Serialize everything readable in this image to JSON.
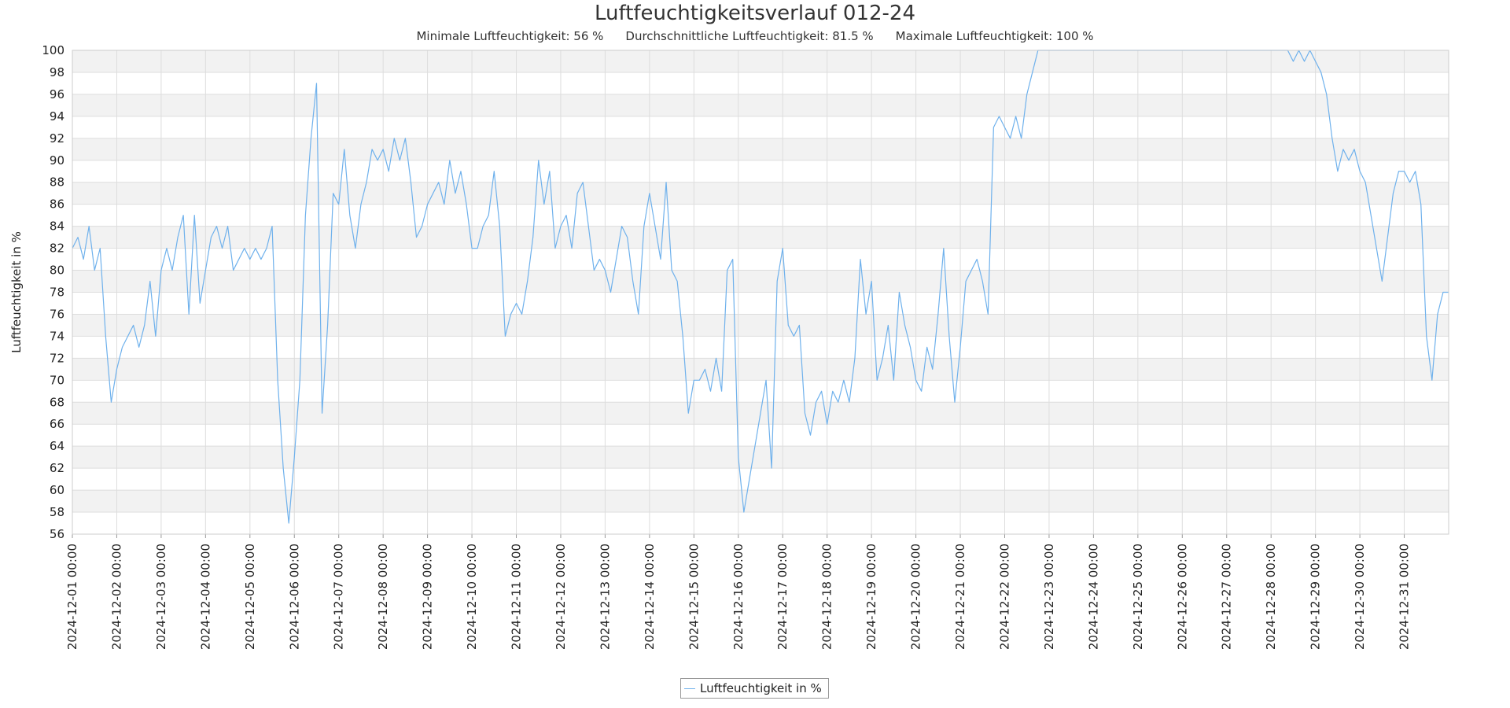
{
  "chart_data": {
    "type": "line",
    "title": "Luftfeuchtigkeitsverlauf 012-24",
    "subtitle": {
      "min": "Minimale Luftfeuchtigkeit: 56 %",
      "avg": "Durchschnittliche Luftfeuchtigkeit: 81.5 %",
      "max": "Maximale Luftfeuchtigkeit: 100 %"
    },
    "ylabel": "Luftfeuchtigkeit in %",
    "xlabel": "",
    "ylim": [
      56,
      100
    ],
    "y_ticks": [
      56,
      58,
      60,
      62,
      64,
      66,
      68,
      70,
      72,
      74,
      76,
      78,
      80,
      82,
      84,
      86,
      88,
      90,
      92,
      94,
      96,
      98,
      100
    ],
    "x_ticks": [
      "2024-12-01 00:00",
      "2024-12-02 00:00",
      "2024-12-03 00:00",
      "2024-12-04 00:00",
      "2024-12-05 00:00",
      "2024-12-06 00:00",
      "2024-12-07 00:00",
      "2024-12-08 00:00",
      "2024-12-09 00:00",
      "2024-12-10 00:00",
      "2024-12-11 00:00",
      "2024-12-12 00:00",
      "2024-12-13 00:00",
      "2024-12-14 00:00",
      "2024-12-15 00:00",
      "2024-12-16 00:00",
      "2024-12-17 00:00",
      "2024-12-18 00:00",
      "2024-12-19 00:00",
      "2024-12-20 00:00",
      "2024-12-21 00:00",
      "2024-12-22 00:00",
      "2024-12-23 00:00",
      "2024-12-24 00:00",
      "2024-12-25 00:00",
      "2024-12-26 00:00",
      "2024-12-27 00:00",
      "2024-12-28 00:00",
      "2024-12-29 00:00",
      "2024-12-30 00:00",
      "2024-12-31 00:00"
    ],
    "xlim": [
      "2024-12-01 00:00",
      "2025-01-01 00:00"
    ],
    "grid": true,
    "legend_position": "bottom-center",
    "series": [
      {
        "name": "Luftfeuchtigkeit in %",
        "color": "#6fb1ec",
        "points": [
          [
            "2024-12-01 00:00",
            82
          ],
          [
            "2024-12-01 03:00",
            83
          ],
          [
            "2024-12-01 06:00",
            81
          ],
          [
            "2024-12-01 09:00",
            84
          ],
          [
            "2024-12-01 12:00",
            80
          ],
          [
            "2024-12-01 15:00",
            82
          ],
          [
            "2024-12-01 18:00",
            74
          ],
          [
            "2024-12-01 21:00",
            68
          ],
          [
            "2024-12-02 00:00",
            71
          ],
          [
            "2024-12-02 03:00",
            73
          ],
          [
            "2024-12-02 06:00",
            74
          ],
          [
            "2024-12-02 09:00",
            75
          ],
          [
            "2024-12-02 12:00",
            73
          ],
          [
            "2024-12-02 15:00",
            75
          ],
          [
            "2024-12-02 18:00",
            79
          ],
          [
            "2024-12-02 21:00",
            74
          ],
          [
            "2024-12-03 00:00",
            80
          ],
          [
            "2024-12-03 03:00",
            82
          ],
          [
            "2024-12-03 06:00",
            80
          ],
          [
            "2024-12-03 09:00",
            83
          ],
          [
            "2024-12-03 12:00",
            85
          ],
          [
            "2024-12-03 15:00",
            76
          ],
          [
            "2024-12-03 18:00",
            85
          ],
          [
            "2024-12-03 21:00",
            77
          ],
          [
            "2024-12-04 00:00",
            80
          ],
          [
            "2024-12-04 03:00",
            83
          ],
          [
            "2024-12-04 06:00",
            84
          ],
          [
            "2024-12-04 09:00",
            82
          ],
          [
            "2024-12-04 12:00",
            84
          ],
          [
            "2024-12-04 15:00",
            80
          ],
          [
            "2024-12-04 18:00",
            81
          ],
          [
            "2024-12-04 21:00",
            82
          ],
          [
            "2024-12-05 00:00",
            81
          ],
          [
            "2024-12-05 03:00",
            82
          ],
          [
            "2024-12-05 06:00",
            81
          ],
          [
            "2024-12-05 09:00",
            82
          ],
          [
            "2024-12-05 12:00",
            84
          ],
          [
            "2024-12-05 15:00",
            70
          ],
          [
            "2024-12-05 18:00",
            62
          ],
          [
            "2024-12-05 21:00",
            57
          ],
          [
            "2024-12-06 00:00",
            63
          ],
          [
            "2024-12-06 03:00",
            70
          ],
          [
            "2024-12-06 06:00",
            85
          ],
          [
            "2024-12-06 09:00",
            92
          ],
          [
            "2024-12-06 12:00",
            97
          ],
          [
            "2024-12-06 15:00",
            67
          ],
          [
            "2024-12-06 18:00",
            75
          ],
          [
            "2024-12-06 21:00",
            87
          ],
          [
            "2024-12-07 00:00",
            86
          ],
          [
            "2024-12-07 03:00",
            91
          ],
          [
            "2024-12-07 06:00",
            85
          ],
          [
            "2024-12-07 09:00",
            82
          ],
          [
            "2024-12-07 12:00",
            86
          ],
          [
            "2024-12-07 15:00",
            88
          ],
          [
            "2024-12-07 18:00",
            91
          ],
          [
            "2024-12-07 21:00",
            90
          ],
          [
            "2024-12-08 00:00",
            91
          ],
          [
            "2024-12-08 03:00",
            89
          ],
          [
            "2024-12-08 06:00",
            92
          ],
          [
            "2024-12-08 09:00",
            90
          ],
          [
            "2024-12-08 12:00",
            92
          ],
          [
            "2024-12-08 15:00",
            88
          ],
          [
            "2024-12-08 18:00",
            83
          ],
          [
            "2024-12-08 21:00",
            84
          ],
          [
            "2024-12-09 00:00",
            86
          ],
          [
            "2024-12-09 03:00",
            87
          ],
          [
            "2024-12-09 06:00",
            88
          ],
          [
            "2024-12-09 09:00",
            86
          ],
          [
            "2024-12-09 12:00",
            90
          ],
          [
            "2024-12-09 15:00",
            87
          ],
          [
            "2024-12-09 18:00",
            89
          ],
          [
            "2024-12-09 21:00",
            86
          ],
          [
            "2024-12-10 00:00",
            82
          ],
          [
            "2024-12-10 03:00",
            82
          ],
          [
            "2024-12-10 06:00",
            84
          ],
          [
            "2024-12-10 09:00",
            85
          ],
          [
            "2024-12-10 12:00",
            89
          ],
          [
            "2024-12-10 15:00",
            84
          ],
          [
            "2024-12-10 18:00",
            74
          ],
          [
            "2024-12-10 21:00",
            76
          ],
          [
            "2024-12-11 00:00",
            77
          ],
          [
            "2024-12-11 03:00",
            76
          ],
          [
            "2024-12-11 06:00",
            79
          ],
          [
            "2024-12-11 09:00",
            83
          ],
          [
            "2024-12-11 12:00",
            90
          ],
          [
            "2024-12-11 15:00",
            86
          ],
          [
            "2024-12-11 18:00",
            89
          ],
          [
            "2024-12-11 21:00",
            82
          ],
          [
            "2024-12-12 00:00",
            84
          ],
          [
            "2024-12-12 03:00",
            85
          ],
          [
            "2024-12-12 06:00",
            82
          ],
          [
            "2024-12-12 09:00",
            87
          ],
          [
            "2024-12-12 12:00",
            88
          ],
          [
            "2024-12-12 15:00",
            84
          ],
          [
            "2024-12-12 18:00",
            80
          ],
          [
            "2024-12-12 21:00",
            81
          ],
          [
            "2024-12-13 00:00",
            80
          ],
          [
            "2024-12-13 03:00",
            78
          ],
          [
            "2024-12-13 06:00",
            81
          ],
          [
            "2024-12-13 09:00",
            84
          ],
          [
            "2024-12-13 12:00",
            83
          ],
          [
            "2024-12-13 15:00",
            79
          ],
          [
            "2024-12-13 18:00",
            76
          ],
          [
            "2024-12-13 21:00",
            84
          ],
          [
            "2024-12-14 00:00",
            87
          ],
          [
            "2024-12-14 03:00",
            84
          ],
          [
            "2024-12-14 06:00",
            81
          ],
          [
            "2024-12-14 09:00",
            88
          ],
          [
            "2024-12-14 12:00",
            80
          ],
          [
            "2024-12-14 15:00",
            79
          ],
          [
            "2024-12-14 18:00",
            74
          ],
          [
            "2024-12-14 21:00",
            67
          ],
          [
            "2024-12-15 00:00",
            70
          ],
          [
            "2024-12-15 03:00",
            70
          ],
          [
            "2024-12-15 06:00",
            71
          ],
          [
            "2024-12-15 09:00",
            69
          ],
          [
            "2024-12-15 12:00",
            72
          ],
          [
            "2024-12-15 15:00",
            69
          ],
          [
            "2024-12-15 18:00",
            80
          ],
          [
            "2024-12-15 21:00",
            81
          ],
          [
            "2024-12-16 00:00",
            63
          ],
          [
            "2024-12-16 03:00",
            58
          ],
          [
            "2024-12-16 06:00",
            61
          ],
          [
            "2024-12-16 09:00",
            64
          ],
          [
            "2024-12-16 12:00",
            67
          ],
          [
            "2024-12-16 15:00",
            70
          ],
          [
            "2024-12-16 18:00",
            62
          ],
          [
            "2024-12-16 21:00",
            79
          ],
          [
            "2024-12-17 00:00",
            82
          ],
          [
            "2024-12-17 03:00",
            75
          ],
          [
            "2024-12-17 06:00",
            74
          ],
          [
            "2024-12-17 09:00",
            75
          ],
          [
            "2024-12-17 12:00",
            67
          ],
          [
            "2024-12-17 15:00",
            65
          ],
          [
            "2024-12-17 18:00",
            68
          ],
          [
            "2024-12-17 21:00",
            69
          ],
          [
            "2024-12-18 00:00",
            66
          ],
          [
            "2024-12-18 03:00",
            69
          ],
          [
            "2024-12-18 06:00",
            68
          ],
          [
            "2024-12-18 09:00",
            70
          ],
          [
            "2024-12-18 12:00",
            68
          ],
          [
            "2024-12-18 15:00",
            72
          ],
          [
            "2024-12-18 18:00",
            81
          ],
          [
            "2024-12-18 21:00",
            76
          ],
          [
            "2024-12-19 00:00",
            79
          ],
          [
            "2024-12-19 03:00",
            70
          ],
          [
            "2024-12-19 06:00",
            72
          ],
          [
            "2024-12-19 09:00",
            75
          ],
          [
            "2024-12-19 12:00",
            70
          ],
          [
            "2024-12-19 15:00",
            78
          ],
          [
            "2024-12-19 18:00",
            75
          ],
          [
            "2024-12-19 21:00",
            73
          ],
          [
            "2024-12-20 00:00",
            70
          ],
          [
            "2024-12-20 03:00",
            69
          ],
          [
            "2024-12-20 06:00",
            73
          ],
          [
            "2024-12-20 09:00",
            71
          ],
          [
            "2024-12-20 12:00",
            76
          ],
          [
            "2024-12-20 15:00",
            82
          ],
          [
            "2024-12-20 18:00",
            74
          ],
          [
            "2024-12-20 21:00",
            68
          ],
          [
            "2024-12-21 00:00",
            73
          ],
          [
            "2024-12-21 03:00",
            79
          ],
          [
            "2024-12-21 06:00",
            80
          ],
          [
            "2024-12-21 09:00",
            81
          ],
          [
            "2024-12-21 12:00",
            79
          ],
          [
            "2024-12-21 15:00",
            76
          ],
          [
            "2024-12-21 18:00",
            93
          ],
          [
            "2024-12-21 21:00",
            94
          ],
          [
            "2024-12-22 00:00",
            93
          ],
          [
            "2024-12-22 03:00",
            92
          ],
          [
            "2024-12-22 06:00",
            94
          ],
          [
            "2024-12-22 09:00",
            92
          ],
          [
            "2024-12-22 12:00",
            96
          ],
          [
            "2024-12-22 15:00",
            98
          ],
          [
            "2024-12-22 18:00",
            100
          ],
          [
            "2024-12-22 21:00",
            100
          ],
          [
            "2024-12-23 00:00",
            100
          ],
          [
            "2024-12-23 03:00",
            100
          ],
          [
            "2024-12-23 06:00",
            100
          ],
          [
            "2024-12-23 09:00",
            100
          ],
          [
            "2024-12-23 12:00",
            100
          ],
          [
            "2024-12-23 15:00",
            100
          ],
          [
            "2024-12-23 18:00",
            100
          ],
          [
            "2024-12-23 21:00",
            100
          ],
          [
            "2024-12-24 00:00",
            100
          ],
          [
            "2024-12-24 03:00",
            100
          ],
          [
            "2024-12-24 06:00",
            100
          ],
          [
            "2024-12-24 09:00",
            100
          ],
          [
            "2024-12-24 12:00",
            100
          ],
          [
            "2024-12-24 15:00",
            100
          ],
          [
            "2024-12-24 18:00",
            100
          ],
          [
            "2024-12-24 21:00",
            100
          ],
          [
            "2024-12-25 00:00",
            100
          ],
          [
            "2024-12-25 03:00",
            100
          ],
          [
            "2024-12-25 06:00",
            100
          ],
          [
            "2024-12-25 09:00",
            100
          ],
          [
            "2024-12-25 12:00",
            100
          ],
          [
            "2024-12-25 15:00",
            100
          ],
          [
            "2024-12-25 18:00",
            100
          ],
          [
            "2024-12-25 21:00",
            100
          ],
          [
            "2024-12-26 00:00",
            100
          ],
          [
            "2024-12-26 03:00",
            100
          ],
          [
            "2024-12-26 06:00",
            100
          ],
          [
            "2024-12-26 09:00",
            100
          ],
          [
            "2024-12-26 12:00",
            100
          ],
          [
            "2024-12-26 15:00",
            100
          ],
          [
            "2024-12-26 18:00",
            100
          ],
          [
            "2024-12-26 21:00",
            100
          ],
          [
            "2024-12-27 00:00",
            100
          ],
          [
            "2024-12-27 03:00",
            100
          ],
          [
            "2024-12-27 06:00",
            100
          ],
          [
            "2024-12-27 09:00",
            100
          ],
          [
            "2024-12-27 12:00",
            100
          ],
          [
            "2024-12-27 15:00",
            100
          ],
          [
            "2024-12-27 18:00",
            100
          ],
          [
            "2024-12-27 21:00",
            100
          ],
          [
            "2024-12-28 00:00",
            100
          ],
          [
            "2024-12-28 03:00",
            100
          ],
          [
            "2024-12-28 06:00",
            100
          ],
          [
            "2024-12-28 09:00",
            100
          ],
          [
            "2024-12-28 12:00",
            99
          ],
          [
            "2024-12-28 15:00",
            100
          ],
          [
            "2024-12-28 18:00",
            99
          ],
          [
            "2024-12-28 21:00",
            100
          ],
          [
            "2024-12-29 00:00",
            99
          ],
          [
            "2024-12-29 03:00",
            98
          ],
          [
            "2024-12-29 06:00",
            96
          ],
          [
            "2024-12-29 09:00",
            92
          ],
          [
            "2024-12-29 12:00",
            89
          ],
          [
            "2024-12-29 15:00",
            91
          ],
          [
            "2024-12-29 18:00",
            90
          ],
          [
            "2024-12-29 21:00",
            91
          ],
          [
            "2024-12-30 00:00",
            89
          ],
          [
            "2024-12-30 03:00",
            88
          ],
          [
            "2024-12-30 06:00",
            85
          ],
          [
            "2024-12-30 09:00",
            82
          ],
          [
            "2024-12-30 12:00",
            79
          ],
          [
            "2024-12-30 15:00",
            83
          ],
          [
            "2024-12-30 18:00",
            87
          ],
          [
            "2024-12-30 21:00",
            89
          ],
          [
            "2024-12-31 00:00",
            89
          ],
          [
            "2024-12-31 03:00",
            88
          ],
          [
            "2024-12-31 06:00",
            89
          ],
          [
            "2024-12-31 09:00",
            86
          ],
          [
            "2024-12-31 12:00",
            74
          ],
          [
            "2024-12-31 15:00",
            70
          ],
          [
            "2024-12-31 18:00",
            76
          ],
          [
            "2024-12-31 21:00",
            78
          ],
          [
            "2025-01-01 00:00",
            78
          ]
        ]
      }
    ]
  }
}
